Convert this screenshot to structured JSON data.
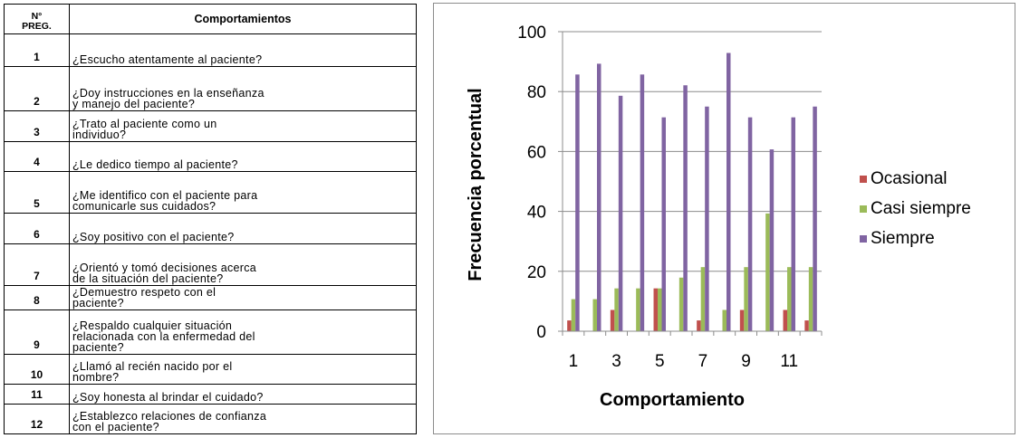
{
  "table": {
    "header_num": "N° PREG.",
    "header_num_lines": [
      "N°",
      "PREG."
    ],
    "header_behavior": "Comportamientos",
    "rows": [
      {
        "num": "1",
        "lines": [
          "¿Escucho atentamente al paciente?"
        ]
      },
      {
        "num": "2",
        "lines": [
          "¿Doy  instrucciones en la enseñanza",
          "y manejo del paciente?"
        ]
      },
      {
        "num": "3",
        "lines": [
          "¿Trato al paciente como un",
          "individuo?"
        ]
      },
      {
        "num": "4",
        "lines": [
          "¿Le dedico  tiempo al paciente?"
        ]
      },
      {
        "num": "5",
        "lines": [
          "¿Me identifico con el paciente para",
          "comunicarle sus cuidados?"
        ]
      },
      {
        "num": "6",
        "lines": [
          "¿Soy positivo con el paciente?"
        ]
      },
      {
        "num": "7",
        "lines": [
          "¿Orientó  y tomó decisiones acerca",
          "de la situación del paciente?"
        ]
      },
      {
        "num": "8",
        "lines": [
          "¿Demuestro  respeto con el",
          "paciente?"
        ]
      },
      {
        "num": "9",
        "lines": [
          "¿Respaldo  cualquier situación",
          "relacionada con la enfermedad del",
          "paciente?"
        ]
      },
      {
        "num": "10",
        "lines": [
          "¿Llamó al recién nacido por el",
          "nombre?"
        ]
      },
      {
        "num": "11",
        "lines": [
          "¿Soy honesta al brindar el cuidado?"
        ]
      },
      {
        "num": "12",
        "lines": [
          "¿Establezco relaciones de confianza",
          "con el paciente?"
        ]
      }
    ]
  },
  "chart_data": {
    "type": "bar",
    "categories": [
      "1",
      "2",
      "3",
      "4",
      "5",
      "6",
      "7",
      "8",
      "9",
      "10",
      "11",
      "12"
    ],
    "x_tick_labels": [
      "1",
      "3",
      "5",
      "7",
      "9",
      "11"
    ],
    "series": [
      {
        "name": "Ocasional",
        "color": "#c0504d",
        "values": [
          3.6,
          0,
          7.1,
          0,
          14.3,
          0,
          3.6,
          0,
          7.1,
          0,
          7.1,
          3.6
        ]
      },
      {
        "name": "Casi siempre",
        "color": "#9bbb59",
        "values": [
          10.7,
          10.7,
          14.3,
          14.3,
          14.3,
          17.9,
          21.4,
          7.1,
          21.4,
          39.3,
          21.4,
          21.4
        ]
      },
      {
        "name": "Siempre",
        "color": "#8064a2",
        "values": [
          85.7,
          89.3,
          78.6,
          85.7,
          71.4,
          82.1,
          75.0,
          92.9,
          71.4,
          60.7,
          71.4,
          75.0
        ]
      }
    ],
    "xlabel": "Comportamiento",
    "ylabel": "Frecuencia  porcentual",
    "ylim": [
      0,
      100
    ],
    "yticks": [
      0,
      20,
      40,
      60,
      80,
      100
    ],
    "grid": true,
    "legend": "right"
  }
}
